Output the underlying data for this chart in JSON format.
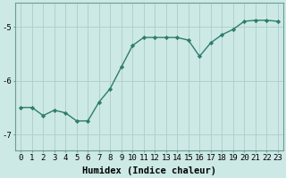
{
  "x": [
    0,
    1,
    2,
    3,
    4,
    5,
    6,
    7,
    8,
    9,
    10,
    11,
    12,
    13,
    14,
    15,
    16,
    17,
    18,
    19,
    20,
    21,
    22,
    23
  ],
  "y": [
    -6.5,
    -6.5,
    -6.65,
    -6.55,
    -6.6,
    -6.75,
    -6.75,
    -6.4,
    -6.15,
    -5.75,
    -5.35,
    -5.2,
    -5.2,
    -5.2,
    -5.2,
    -5.25,
    -5.55,
    -5.3,
    -5.15,
    -5.05,
    -4.9,
    -4.88,
    -4.88,
    -4.9
  ],
  "line_color": "#2e7d6e",
  "marker": "D",
  "marker_size": 2.2,
  "bg_color": "#cce9e5",
  "grid_color": "#b0ccc8",
  "xlabel": "Humidex (Indice chaleur)",
  "xlabel_fontsize": 7.5,
  "tick_fontsize": 6.5,
  "ylim": [
    -7.3,
    -4.55
  ],
  "yticks": [
    -7,
    -6,
    -5
  ],
  "xticks": [
    0,
    1,
    2,
    3,
    4,
    5,
    6,
    7,
    8,
    9,
    10,
    11,
    12,
    13,
    14,
    15,
    16,
    17,
    18,
    19,
    20,
    21,
    22,
    23
  ],
  "line_width": 1.0
}
